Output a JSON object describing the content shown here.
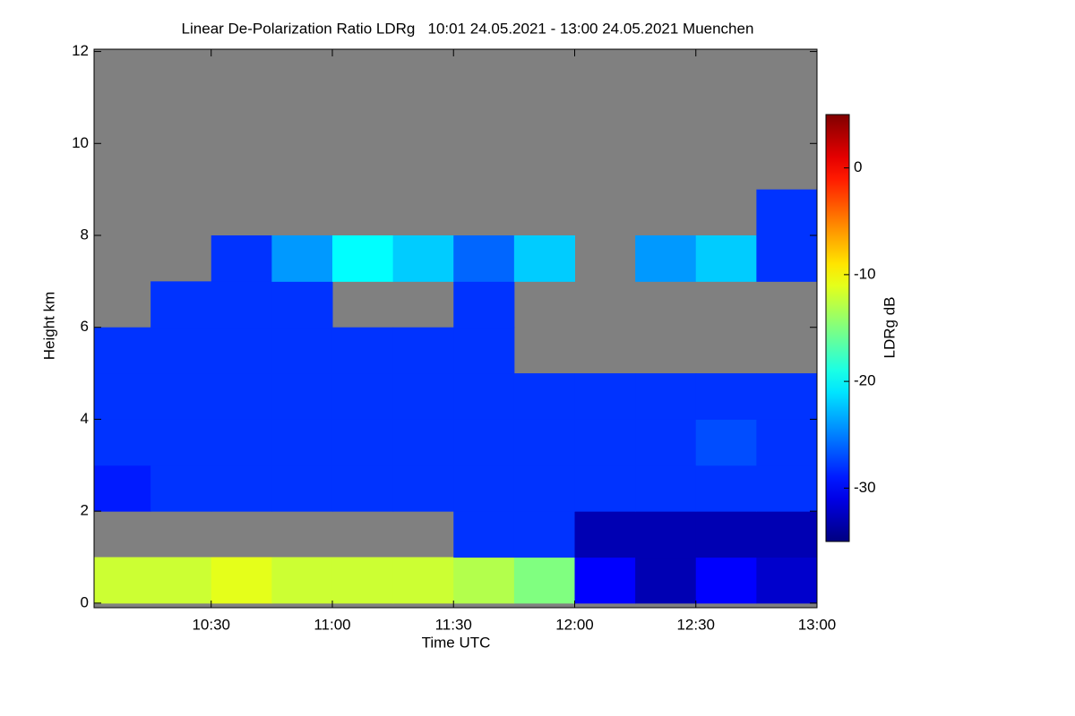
{
  "chart_data": {
    "type": "heatmap",
    "title": "Linear De-Polarization Ratio LDRg   10:01 24.05.2021 - 13:00 24.05.2021 Muenchen",
    "xlabel": "Time UTC",
    "ylabel": "Height km",
    "x_edges": [
      10.0167,
      10.25,
      10.5,
      10.75,
      11.0,
      11.25,
      11.5,
      11.75,
      12.0,
      12.25,
      12.5,
      12.75,
      13.0
    ],
    "y_edges": [
      0,
      1,
      2,
      3,
      4,
      5,
      6,
      7,
      8,
      9,
      10,
      11,
      12
    ],
    "z": [
      [
        -12,
        -12,
        -11,
        -12,
        -12,
        -12,
        -13,
        -15,
        -30,
        -33,
        -30,
        -32
      ],
      [
        null,
        null,
        null,
        null,
        null,
        null,
        -28,
        -28,
        -33,
        -33,
        -33,
        -33
      ],
      [
        -29,
        -28,
        -28,
        -28,
        -28,
        -28,
        -28,
        -28,
        -28,
        -28,
        -28,
        -28
      ],
      [
        -28,
        -28,
        -28,
        -28,
        -28,
        -28,
        -28,
        -28,
        -28,
        -28,
        -27,
        -28
      ],
      [
        -28,
        -28,
        -28,
        -28,
        -28,
        -28,
        -28,
        -28,
        -28,
        -28,
        -28,
        -28
      ],
      [
        -28,
        -28,
        -28,
        -28,
        -28,
        -28,
        -28,
        null,
        null,
        null,
        null,
        null
      ],
      [
        null,
        -28,
        -28,
        -28,
        null,
        null,
        -28,
        null,
        null,
        null,
        null,
        null
      ],
      [
        null,
        null,
        -28,
        -24,
        -20,
        -22,
        -26,
        -22,
        null,
        -24,
        -22,
        -28
      ],
      [
        null,
        null,
        null,
        null,
        null,
        null,
        null,
        null,
        null,
        null,
        null,
        -28
      ],
      [
        null,
        null,
        null,
        null,
        null,
        null,
        null,
        null,
        null,
        null,
        null,
        null
      ],
      [
        null,
        null,
        null,
        null,
        null,
        null,
        null,
        null,
        null,
        null,
        null,
        null
      ],
      [
        null,
        null,
        null,
        null,
        null,
        null,
        null,
        null,
        null,
        null,
        null,
        null
      ]
    ],
    "missing_color": "#808080",
    "colormap": "jet",
    "xlim": [
      10.0167,
      13.0
    ],
    "xticks": [
      {
        "value": 10.5,
        "label": "10:30"
      },
      {
        "value": 11.0,
        "label": "11:00"
      },
      {
        "value": 11.5,
        "label": "11:30"
      },
      {
        "value": 12.0,
        "label": "12:00"
      },
      {
        "value": 12.5,
        "label": "12:30"
      },
      {
        "value": 13.0,
        "label": "13:00"
      }
    ],
    "ylim": [
      -0.1,
      12.05
    ],
    "yticks": [
      0,
      2,
      4,
      6,
      8,
      10,
      12
    ],
    "colorbar": {
      "label": "LDRg dB",
      "clim": [
        -35,
        5
      ],
      "ticks": [
        0,
        -10,
        -20,
        -30
      ]
    }
  }
}
